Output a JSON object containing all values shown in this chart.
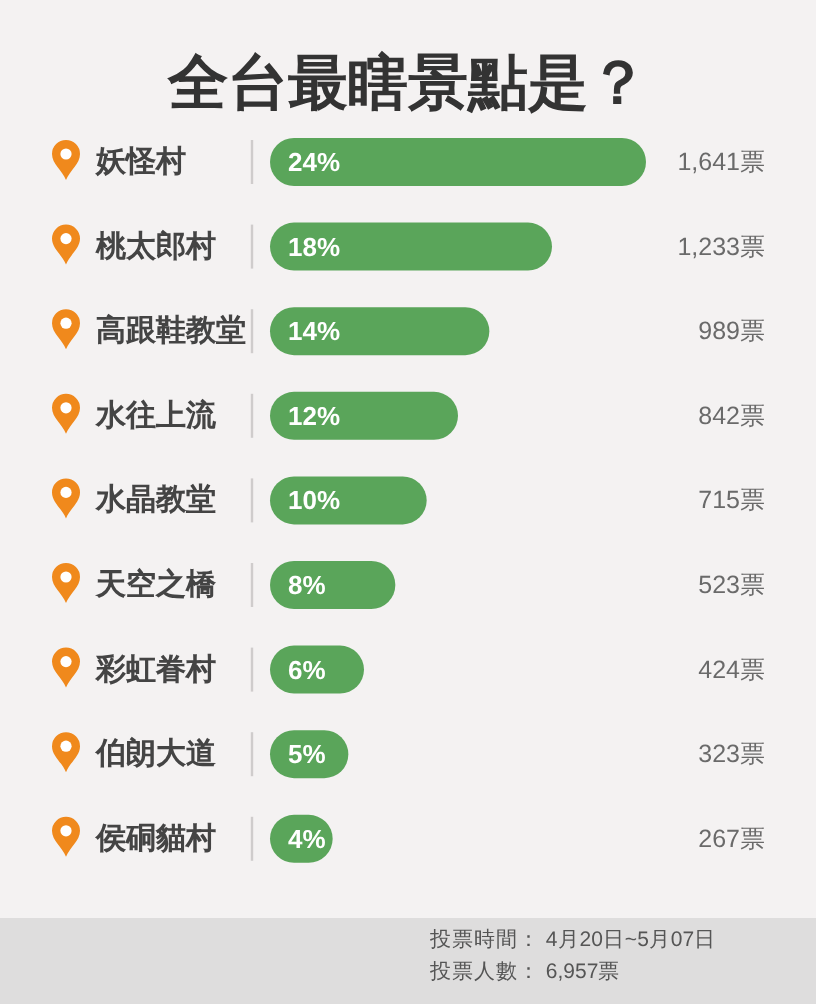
{
  "chart_data": {
    "type": "bar",
    "orientation": "horizontal",
    "title": "全台最瞎景點是？",
    "categories": [
      "妖怪村",
      "桃太郎村",
      "高跟鞋教堂",
      "水往上流",
      "水晶教堂",
      "天空之橋",
      "彩虹眷村",
      "伯朗大道",
      "侯硐貓村"
    ],
    "values": [
      24,
      18,
      14,
      12,
      10,
      8,
      6,
      5,
      4
    ],
    "color": "#5aa55a",
    "value_labels": [
      "24%",
      "18%",
      "14%",
      "12%",
      "10%",
      "8%",
      "6%",
      "5%",
      "4%"
    ],
    "annotations": [
      "1,641票",
      "1,233票",
      "989票",
      "842票",
      "715票",
      "523票",
      "424票",
      "323票",
      "267票",
      "投票時間： 4月20日~5月07日",
      "投票人數： 6,957票"
    ]
  }
}
